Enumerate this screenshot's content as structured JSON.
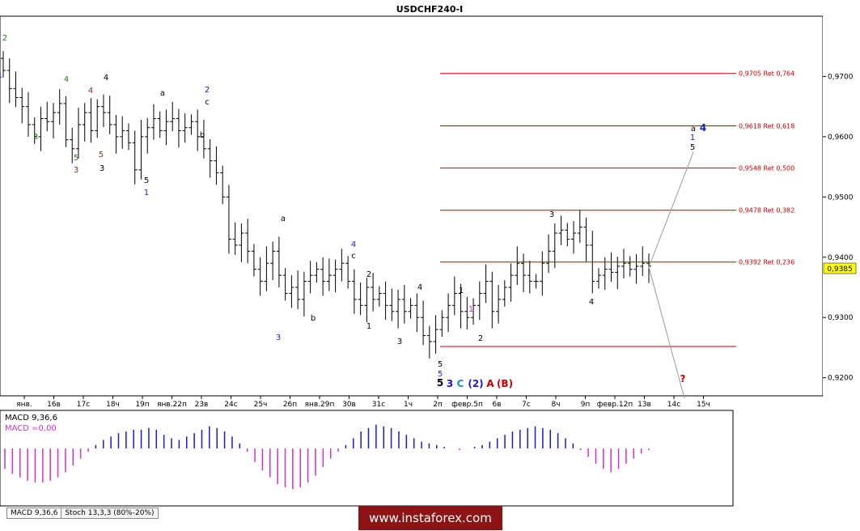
{
  "title": "USDCHF240-I",
  "watermark": "www.instaforex.com",
  "current_price": "0,9385",
  "tabs": [
    "MACD 9,36,6",
    "Stoch 13,3,3 (80%-20%)"
  ],
  "colors": {
    "candle": "#000000",
    "fib": "#cc0000",
    "macd_pos": "#1a1ad6",
    "macd_neg": "#cc33cc",
    "green": "#2a7a2a",
    "brown": "#7a3a1a",
    "blue": "#1a1ad6",
    "teal": "#1a8fd0",
    "red": "#cc0000",
    "price_badge": "#ffff00"
  },
  "chart_data": {
    "type": "candlestick",
    "title": "USDCHF240-I",
    "ylim": [
      0.917,
      0.98
    ],
    "y_ticks": [
      "0,9700",
      "0,9600",
      "0,9500",
      "0,9400",
      "0,9300",
      "0,9200"
    ],
    "x_ticks": [
      "янв.",
      "16в",
      "17с",
      "18ч",
      "19п",
      "янв.22п",
      "23в",
      "24с",
      "25ч",
      "26п",
      "янв.29п",
      "30в",
      "31с",
      "1ч",
      "2п",
      "февр.5п",
      "6в",
      "7с",
      "8ч",
      "9п",
      "февр.12п",
      "13в",
      "14с",
      "15ч"
    ],
    "series_close": [
      0.971,
      0.968,
      0.9665,
      0.965,
      0.962,
      0.96,
      0.963,
      0.9625,
      0.964,
      0.9655,
      0.9595,
      0.958,
      0.962,
      0.964,
      0.961,
      0.965,
      0.964,
      0.962,
      0.96,
      0.961,
      0.959,
      0.9545,
      0.96,
      0.9615,
      0.963,
      0.961,
      0.9625,
      0.963,
      0.961,
      0.9615,
      0.9625,
      0.96,
      0.958,
      0.956,
      0.954,
      0.95,
      0.943,
      0.942,
      0.944,
      0.941,
      0.938,
      0.936,
      0.939,
      0.941,
      0.937,
      0.934,
      0.935,
      0.933,
      0.936,
      0.937,
      0.938,
      0.936,
      0.937,
      0.938,
      0.939,
      0.936,
      0.933,
      0.932,
      0.935,
      0.933,
      0.934,
      0.932,
      0.931,
      0.933,
      0.931,
      0.932,
      0.93,
      0.927,
      0.926,
      0.928,
      0.93,
      0.932,
      0.934,
      0.931,
      0.93,
      0.932,
      0.934,
      0.936,
      0.931,
      0.933,
      0.935,
      0.937,
      0.939,
      0.937,
      0.936,
      0.936,
      0.939,
      0.941,
      0.944,
      0.9445,
      0.943,
      0.944,
      0.945,
      0.942,
      0.936,
      0.937,
      0.938,
      0.9375,
      0.9385,
      0.939,
      0.938,
      0.9385,
      0.939,
      0.9385
    ],
    "fib_levels": [
      {
        "price": 0.9705,
        "label": "0,9705 Ret 0,764"
      },
      {
        "price": 0.9618,
        "label": "0,9618 Ret 0,618"
      },
      {
        "price": 0.9548,
        "label": "0,9548 Ret 0,500"
      },
      {
        "price": 0.9478,
        "label": "0,9478 Ret 0,382"
      },
      {
        "price": 0.9392,
        "label": "0,9392 Ret 0,236"
      },
      {
        "price": 0.9252,
        "label": ""
      }
    ],
    "wave_labels": [
      {
        "text": "2",
        "color": "green"
      },
      {
        "text": "1",
        "color": "blue"
      },
      {
        "text": "3",
        "color": "green"
      },
      {
        "text": "4",
        "color": "green"
      },
      {
        "text": "5",
        "color": "green"
      },
      {
        "text": "3",
        "color": "brown"
      },
      {
        "text": "4",
        "color": "brown"
      },
      {
        "text": "5",
        "color": "brown"
      },
      {
        "text": "4",
        "color": "black"
      },
      {
        "text": "3",
        "color": "black"
      },
      {
        "text": "5",
        "color": "black"
      },
      {
        "text": "1",
        "color": "blue"
      },
      {
        "text": "a",
        "color": "black"
      },
      {
        "text": "2",
        "color": "blue"
      },
      {
        "text": "c",
        "color": "black"
      },
      {
        "text": "b",
        "color": "black"
      },
      {
        "text": "a",
        "color": "black"
      },
      {
        "text": "3",
        "color": "blue"
      },
      {
        "text": "b",
        "color": "black"
      },
      {
        "text": "4",
        "color": "blue"
      },
      {
        "text": "c",
        "color": "black"
      },
      {
        "text": "2",
        "color": "black"
      },
      {
        "text": "1",
        "color": "black"
      },
      {
        "text": "3",
        "color": "black"
      },
      {
        "text": "4",
        "color": "black"
      },
      {
        "text": "5",
        "color": "black"
      },
      {
        "text": "5",
        "color": "blue"
      },
      {
        "text": "5",
        "color": "black"
      },
      {
        "text": "3",
        "color": "blue"
      },
      {
        "text": "C",
        "color": "teal"
      },
      {
        "text": "(2)",
        "color": "blue"
      },
      {
        "text": "A",
        "color": "red"
      },
      {
        "text": "(B)",
        "color": "red"
      },
      {
        "text": "1",
        "color": "black"
      },
      {
        "text": "1",
        "color": "pink"
      },
      {
        "text": "2",
        "color": "black"
      },
      {
        "text": "3",
        "color": "black"
      },
      {
        "text": "4",
        "color": "black"
      },
      {
        "text": "a",
        "color": "black"
      },
      {
        "text": "4",
        "color": "blue"
      },
      {
        "text": "1",
        "color": "blue"
      },
      {
        "text": "5",
        "color": "black"
      },
      {
        "text": "?",
        "color": "red"
      }
    ],
    "macd": {
      "label_main": "MACD 9,36,6",
      "label_value": "MACD =0,00",
      "values": [
        -0.6,
        -0.75,
        -0.85,
        -0.95,
        -1.0,
        -1.0,
        -0.95,
        -0.85,
        -0.7,
        -0.5,
        -0.3,
        -0.1,
        0.1,
        0.25,
        0.35,
        0.45,
        0.5,
        0.55,
        0.55,
        0.6,
        0.55,
        0.4,
        0.3,
        0.25,
        0.35,
        0.45,
        0.55,
        0.65,
        0.6,
        0.5,
        0.35,
        0.15,
        -0.1,
        -0.4,
        -0.65,
        -0.85,
        -1.05,
        -1.15,
        -1.2,
        -1.15,
        -1.0,
        -0.8,
        -0.55,
        -0.3,
        -0.1,
        0.1,
        0.3,
        0.5,
        0.6,
        0.7,
        0.65,
        0.6,
        0.5,
        0.4,
        0.3,
        0.2,
        0.15,
        0.1,
        0.05,
        0.0,
        -0.05,
        0.0,
        0.05,
        0.1,
        0.2,
        0.3,
        0.4,
        0.5,
        0.55,
        0.6,
        0.65,
        0.6,
        0.55,
        0.45,
        0.3,
        0.15,
        -0.05,
        -0.25,
        -0.45,
        -0.6,
        -0.7,
        -0.6,
        -0.45,
        -0.3,
        -0.15,
        -0.05
      ]
    }
  }
}
